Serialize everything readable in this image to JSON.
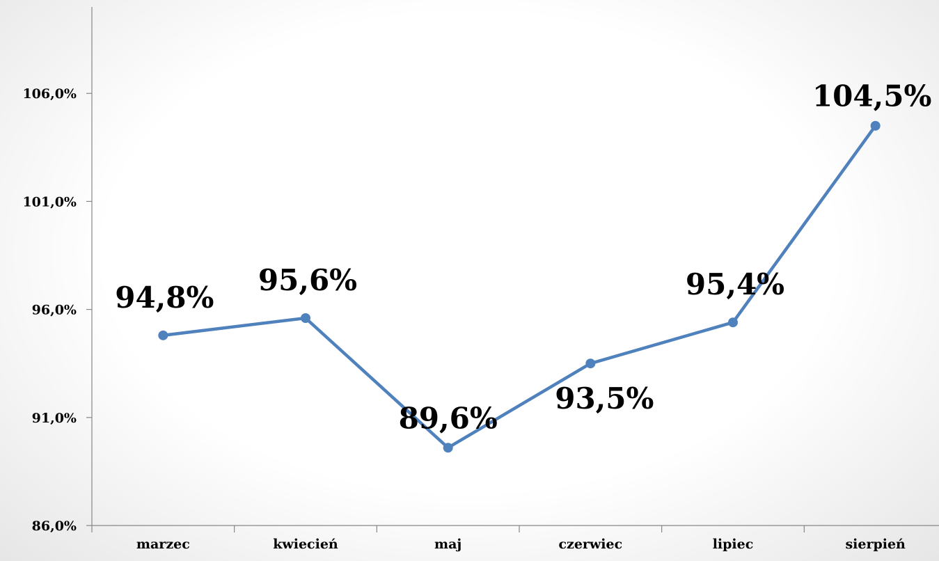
{
  "chart_data": {
    "type": "line",
    "categories": [
      "marzec",
      "kwiecień",
      "maj",
      "czerwiec",
      "lipiec",
      "sierpień"
    ],
    "series": [
      {
        "values": [
          94.8,
          95.6,
          89.6,
          93.5,
          95.4,
          104.5
        ],
        "data_labels": [
          "94,8%",
          "95,6%",
          "89,6%",
          "93,5%",
          "95,4%",
          "104,5%"
        ]
      }
    ],
    "ylim": [
      86.0,
      110.0
    ],
    "yticks": [
      86.0,
      91.0,
      96.0,
      101.0,
      106.0
    ],
    "ytick_labels": [
      "86,0%",
      "91,0%",
      "96,0%",
      "101,0%",
      "106,0%"
    ],
    "grid": false,
    "legend": "none",
    "colors": {
      "line": "#4f81bd"
    }
  }
}
